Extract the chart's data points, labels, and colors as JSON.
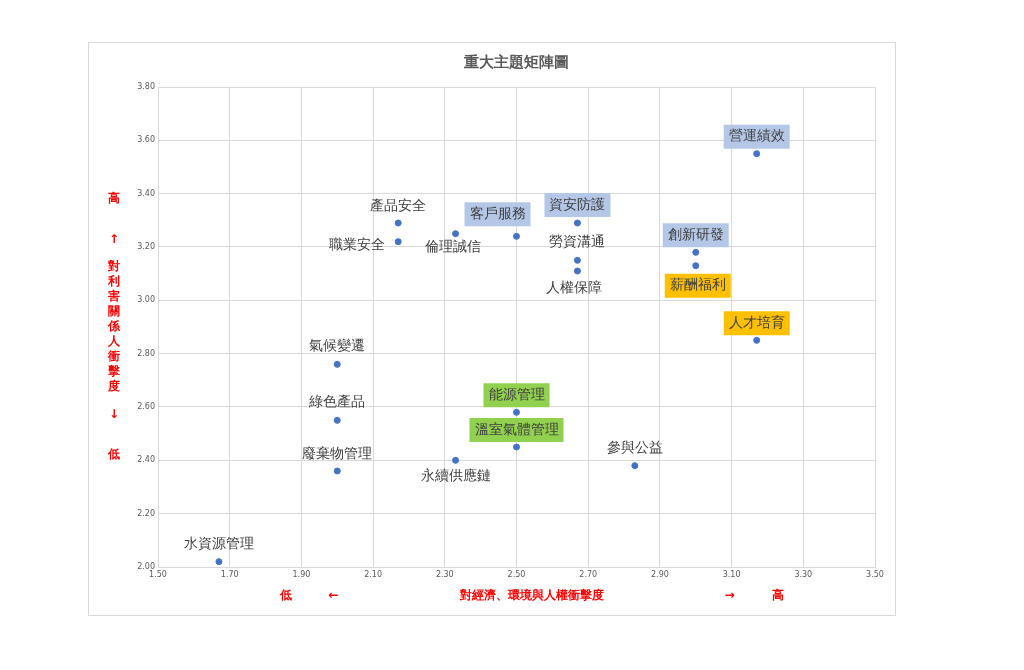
{
  "chart_data": {
    "type": "scatter",
    "title": "重大主題矩陣圖",
    "xlabel": "低 ← 對經濟、環境與人權衝擊度 → 高",
    "ylabel": "高 ↑ 對利害關係人衝擊度 ↓ 低",
    "series": [
      {
        "color": "#4472c4",
        "x": [
          2.17,
          2.17,
          2.33,
          2.5,
          2.67,
          2.67,
          2.67,
          3.17,
          3.0,
          3.0,
          3.17,
          2.0,
          2.0,
          2.0,
          2.5,
          2.5,
          2.33,
          2.83,
          1.67
        ],
        "values": [
          3.29,
          3.22,
          3.25,
          3.24,
          3.29,
          3.15,
          3.11,
          3.55,
          3.18,
          3.13,
          2.85,
          2.76,
          2.55,
          2.36,
          2.58,
          2.45,
          2.4,
          2.38,
          2.02
        ]
      }
    ],
    "annotations": [
      {
        "text": "產品安全",
        "x": 2.17,
        "y": 3.29
      },
      {
        "text": "職業安全",
        "x": 2.17,
        "y": 3.22
      },
      {
        "text": "倫理誠信",
        "x": 2.33,
        "y": 3.25
      },
      {
        "text": "客戶服務",
        "x": 2.5,
        "y": 3.24
      },
      {
        "text": "資安防護",
        "x": 2.67,
        "y": 3.29
      },
      {
        "text": "勞資溝通",
        "x": 2.67,
        "y": 3.15
      },
      {
        "text": "人權保障",
        "x": 2.67,
        "y": 3.11
      },
      {
        "text": "營運績效",
        "x": 3.17,
        "y": 3.55
      },
      {
        "text": "創新研發",
        "x": 3.0,
        "y": 3.18
      },
      {
        "text": "薪酬福利",
        "x": 3.0,
        "y": 3.13
      },
      {
        "text": "人才培育",
        "x": 3.17,
        "y": 2.85
      },
      {
        "text": "氣候變遷",
        "x": 2.0,
        "y": 2.76
      },
      {
        "text": "綠色產品",
        "x": 2.0,
        "y": 2.55
      },
      {
        "text": "廢棄物管理",
        "x": 2.0,
        "y": 2.36
      },
      {
        "text": "能源管理",
        "x": 2.5,
        "y": 2.58
      },
      {
        "text": "溫室氣體管理",
        "x": 2.5,
        "y": 2.45
      },
      {
        "text": "永續供應鏈",
        "x": 2.33,
        "y": 2.4
      },
      {
        "text": "參與公益",
        "x": 2.83,
        "y": 2.38
      },
      {
        "text": "水資源管理",
        "x": 1.67,
        "y": 2.02
      }
    ],
    "xlim": [
      1.5,
      3.5
    ],
    "xticks": [
      {
        "value": 1.5,
        "label": "1.50"
      },
      {
        "value": 1.7,
        "label": "1.70"
      },
      {
        "value": 1.9,
        "label": "1.90"
      },
      {
        "value": 2.1,
        "label": "2.10"
      },
      {
        "value": 2.3,
        "label": "2.30"
      },
      {
        "value": 2.5,
        "label": "2.50"
      },
      {
        "value": 2.7,
        "label": "2.70"
      },
      {
        "value": 2.9,
        "label": "2.90"
      },
      {
        "value": 3.1,
        "label": "3.10"
      },
      {
        "value": 3.3,
        "label": "3.30"
      },
      {
        "value": 3.5,
        "label": "3.50"
      }
    ],
    "ylim": [
      2.0,
      3.8
    ],
    "yticks": [
      {
        "value": 2.0,
        "label": "2.00"
      },
      {
        "value": 2.2,
        "label": "2.20"
      },
      {
        "value": 2.4,
        "label": "2.40"
      },
      {
        "value": 2.6,
        "label": "2.60"
      },
      {
        "value": 2.8,
        "label": "2.80"
      },
      {
        "value": 3.0,
        "label": "3.00"
      },
      {
        "value": 3.2,
        "label": "3.20"
      },
      {
        "value": 3.4,
        "label": "3.40"
      },
      {
        "value": 3.6,
        "label": "3.60"
      },
      {
        "value": 3.8,
        "label": "3.80"
      }
    ],
    "grid": true,
    "legend": false,
    "marker": "circle"
  }
}
